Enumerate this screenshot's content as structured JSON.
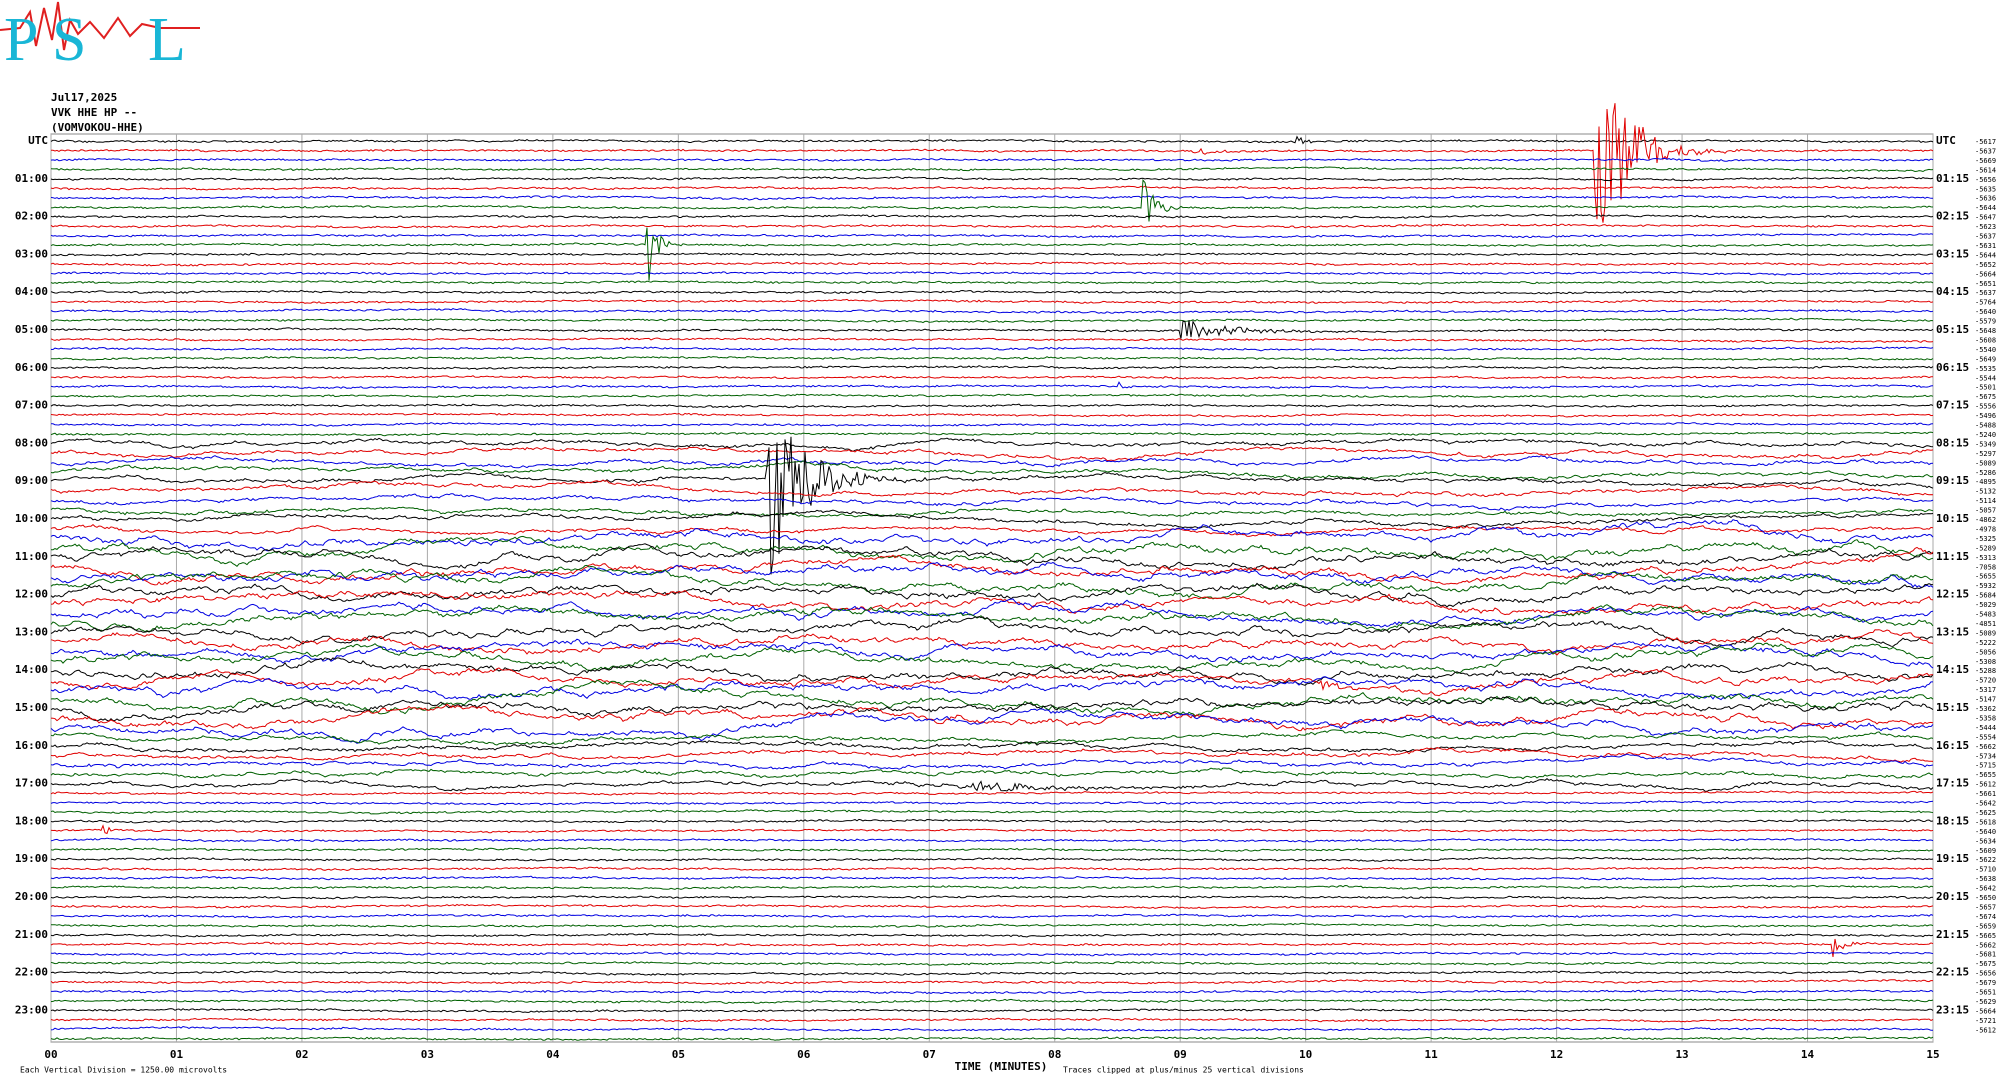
{
  "chart_data": {
    "type": "helicorder",
    "logo_letters": [
      "P",
      "S",
      "L"
    ],
    "date": "Jul17,2025",
    "station": "VVK HHE HP --",
    "site": "(VOMVOKOU-HHE)",
    "left_labels": [
      "UTC",
      "01:00",
      "02:00",
      "03:00",
      "04:00",
      "05:00",
      "06:00",
      "07:00",
      "08:00",
      "09:00",
      "10:00",
      "11:00",
      "12:00",
      "13:00",
      "14:00",
      "15:00",
      "16:00",
      "17:00",
      "18:00",
      "19:00",
      "20:00",
      "21:00",
      "22:00",
      "23:00"
    ],
    "right_labels": [
      "UTC",
      "01:15",
      "02:15",
      "03:15",
      "04:15",
      "05:15",
      "06:15",
      "07:15",
      "08:15",
      "09:15",
      "10:15",
      "11:15",
      "12:15",
      "13:15",
      "14:15",
      "15:15",
      "16:15",
      "17:15",
      "18:15",
      "19:15",
      "20:15",
      "21:15",
      "22:15",
      "23:15"
    ],
    "trace_offsets": [
      -5617,
      -5637,
      -5669,
      -5614,
      -5656,
      -5635,
      -5636,
      -5644,
      -5647,
      -5623,
      -5637,
      -5631,
      -5644,
      -5652,
      -5664,
      -5651,
      -5637,
      -5764,
      -5640,
      -5579,
      -5648,
      -5608,
      -5540,
      -5649,
      -5535,
      -5544,
      -5501,
      -5675,
      -5556,
      -5496,
      -5488,
      -5240,
      -5349,
      -5297,
      -5089,
      -5286,
      -4895,
      -5132,
      -5114,
      -5057,
      -4862,
      -4978,
      -5325,
      -5289,
      -5313,
      -7058,
      -5655,
      -5932,
      -5684,
      -5029,
      -5483,
      -4851,
      -5089,
      -5222,
      -5056,
      -5308,
      -5288,
      -5720,
      -5317,
      -5147,
      -5362,
      -5358,
      -5444,
      -5554,
      -5662,
      -5734,
      -5715,
      -5655,
      -5612,
      -5661,
      -5642,
      -5625,
      -5618,
      -5640,
      -5634,
      -5609,
      -5622,
      -5710,
      -5638,
      -5642,
      -5650,
      -5657,
      -5674,
      -5659,
      -5665,
      -5662,
      -5681,
      -5675,
      -5656,
      -5679,
      -5651,
      -5629,
      -5664,
      -5721,
      -5612
    ],
    "trace_colors": [
      "#000000",
      "#e00000",
      "#0000e0",
      "#006000"
    ],
    "xlim": [
      0,
      15
    ],
    "xticks": [
      {
        "value": 0,
        "label": "00"
      },
      {
        "value": 1,
        "label": "01"
      },
      {
        "value": 2,
        "label": "02"
      },
      {
        "value": 3,
        "label": "03"
      },
      {
        "value": 4,
        "label": "04"
      },
      {
        "value": 5,
        "label": "05"
      },
      {
        "value": 6,
        "label": "06"
      },
      {
        "value": 7,
        "label": "07"
      },
      {
        "value": 8,
        "label": "08"
      },
      {
        "value": 9,
        "label": "09"
      },
      10,
      11,
      12,
      13,
      14,
      15
    ],
    "x_label": "TIME (MINUTES)",
    "note_left": "Each Vertical Division = 1250.00 microvolts",
    "note_right": "Traces clipped at plus/minus 25 vertical divisions",
    "grid": true
  }
}
